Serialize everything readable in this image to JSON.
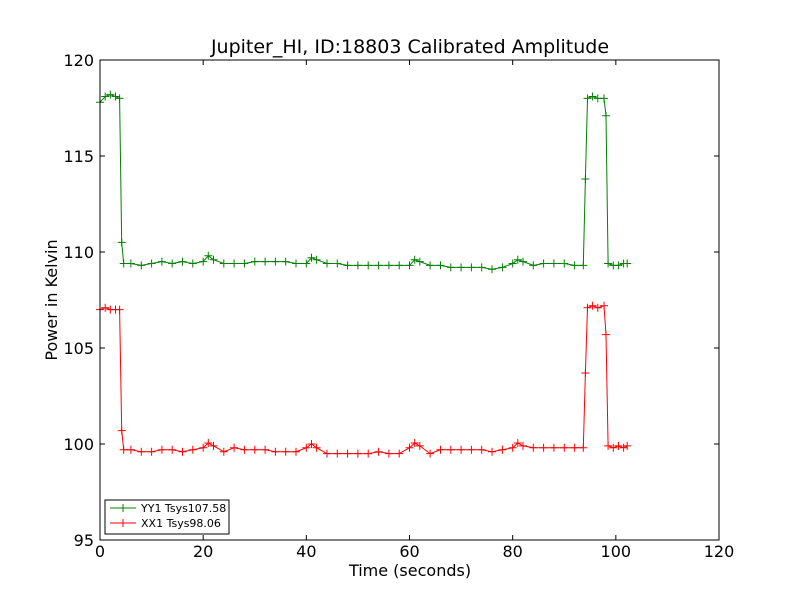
{
  "chart_data": {
    "type": "line",
    "title": "Jupiter_HI, ID:18803 Calibrated Amplitude",
    "xlabel": "Time (seconds)",
    "ylabel": "Power in Kelvin",
    "xlim": [
      0,
      120
    ],
    "ylim": [
      95,
      120
    ],
    "xticks": [
      0,
      20,
      40,
      60,
      80,
      100,
      120
    ],
    "yticks": [
      95,
      100,
      105,
      110,
      115,
      120
    ],
    "grid": false,
    "legend_position": "lower-left",
    "marker": "+",
    "series": [
      {
        "name": "YY1 Tsys107.58",
        "color": "#008000",
        "points": [
          [
            0,
            117.8
          ],
          [
            1,
            118.1
          ],
          [
            2,
            118.2
          ],
          [
            3,
            118.1
          ],
          [
            3.8,
            118.0
          ],
          [
            4.2,
            110.5
          ],
          [
            4.6,
            109.4
          ],
          [
            6,
            109.4
          ],
          [
            8,
            109.3
          ],
          [
            10,
            109.4
          ],
          [
            12,
            109.5
          ],
          [
            14,
            109.4
          ],
          [
            16,
            109.5
          ],
          [
            18,
            109.4
          ],
          [
            20,
            109.5
          ],
          [
            21,
            109.8
          ],
          [
            22,
            109.6
          ],
          [
            24,
            109.4
          ],
          [
            26,
            109.4
          ],
          [
            28,
            109.4
          ],
          [
            30,
            109.5
          ],
          [
            32,
            109.5
          ],
          [
            34,
            109.5
          ],
          [
            36,
            109.5
          ],
          [
            38,
            109.4
          ],
          [
            40,
            109.4
          ],
          [
            41,
            109.7
          ],
          [
            42,
            109.6
          ],
          [
            44,
            109.4
          ],
          [
            46,
            109.4
          ],
          [
            48,
            109.3
          ],
          [
            50,
            109.3
          ],
          [
            52,
            109.3
          ],
          [
            54,
            109.3
          ],
          [
            56,
            109.3
          ],
          [
            58,
            109.3
          ],
          [
            60,
            109.3
          ],
          [
            61,
            109.6
          ],
          [
            62,
            109.5
          ],
          [
            64,
            109.3
          ],
          [
            66,
            109.3
          ],
          [
            68,
            109.2
          ],
          [
            70,
            109.2
          ],
          [
            72,
            109.2
          ],
          [
            74,
            109.2
          ],
          [
            76,
            109.1
          ],
          [
            78,
            109.2
          ],
          [
            80,
            109.4
          ],
          [
            81,
            109.6
          ],
          [
            82,
            109.5
          ],
          [
            84,
            109.3
          ],
          [
            86,
            109.4
          ],
          [
            88,
            109.4
          ],
          [
            90,
            109.4
          ],
          [
            92,
            109.3
          ],
          [
            93.7,
            109.3
          ],
          [
            94.1,
            113.8
          ],
          [
            94.5,
            118.0
          ],
          [
            95.5,
            118.1
          ],
          [
            96.5,
            118.0
          ],
          [
            97.7,
            118.0
          ],
          [
            98.1,
            117.1
          ],
          [
            98.5,
            109.4
          ],
          [
            99.5,
            109.3
          ],
          [
            100.5,
            109.3
          ],
          [
            101.5,
            109.4
          ],
          [
            102.2,
            109.4
          ]
        ]
      },
      {
        "name": "XX1 Tsys98.06",
        "color": "#ff0000",
        "points": [
          [
            0,
            107.0
          ],
          [
            1,
            107.1
          ],
          [
            2,
            107.0
          ],
          [
            3,
            107.0
          ],
          [
            3.8,
            107.0
          ],
          [
            4.2,
            100.7
          ],
          [
            4.6,
            99.7
          ],
          [
            6,
            99.7
          ],
          [
            8,
            99.6
          ],
          [
            10,
            99.6
          ],
          [
            12,
            99.7
          ],
          [
            14,
            99.7
          ],
          [
            16,
            99.6
          ],
          [
            18,
            99.7
          ],
          [
            20,
            99.8
          ],
          [
            21,
            100.05
          ],
          [
            22,
            99.9
          ],
          [
            24,
            99.6
          ],
          [
            26,
            99.8
          ],
          [
            28,
            99.7
          ],
          [
            30,
            99.7
          ],
          [
            32,
            99.7
          ],
          [
            34,
            99.6
          ],
          [
            36,
            99.6
          ],
          [
            38,
            99.6
          ],
          [
            40,
            99.8
          ],
          [
            41,
            100.0
          ],
          [
            42,
            99.8
          ],
          [
            44,
            99.5
          ],
          [
            46,
            99.5
          ],
          [
            48,
            99.5
          ],
          [
            50,
            99.5
          ],
          [
            52,
            99.5
          ],
          [
            54,
            99.6
          ],
          [
            56,
            99.5
          ],
          [
            58,
            99.5
          ],
          [
            60,
            99.8
          ],
          [
            61,
            100.05
          ],
          [
            62,
            99.9
          ],
          [
            64,
            99.5
          ],
          [
            66,
            99.7
          ],
          [
            68,
            99.7
          ],
          [
            70,
            99.7
          ],
          [
            72,
            99.7
          ],
          [
            74,
            99.7
          ],
          [
            76,
            99.6
          ],
          [
            78,
            99.7
          ],
          [
            80,
            99.8
          ],
          [
            81,
            100.05
          ],
          [
            82,
            99.9
          ],
          [
            84,
            99.8
          ],
          [
            86,
            99.8
          ],
          [
            88,
            99.8
          ],
          [
            90,
            99.8
          ],
          [
            92,
            99.8
          ],
          [
            93.7,
            99.8
          ],
          [
            94.1,
            103.7
          ],
          [
            94.5,
            107.1
          ],
          [
            95.5,
            107.2
          ],
          [
            96.5,
            107.1
          ],
          [
            97.7,
            107.2
          ],
          [
            98.1,
            105.7
          ],
          [
            98.5,
            99.9
          ],
          [
            99.5,
            99.8
          ],
          [
            100.5,
            99.9
          ],
          [
            101.5,
            99.8
          ],
          [
            102.2,
            99.9
          ]
        ]
      }
    ]
  }
}
